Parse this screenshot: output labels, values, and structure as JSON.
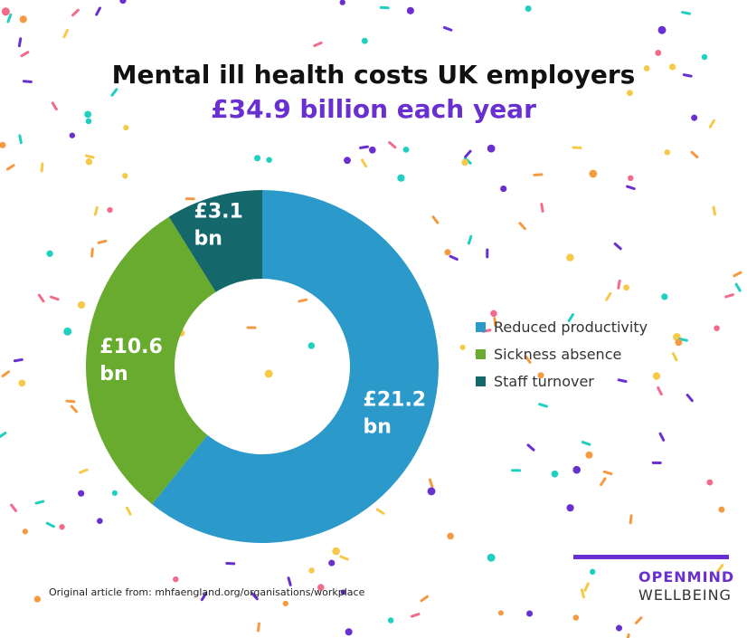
{
  "title_line1": "Mental ill health costs UK employers",
  "title_line2": "£34.9 billion each year",
  "accent_color": "#6a2fd0",
  "chart_data": {
    "type": "pie",
    "subtype": "donut",
    "title": "Mental ill health costs UK employers £34.9 billion each year",
    "total": 34.9,
    "unit": "£ bn",
    "series": [
      {
        "name": "Reduced productivity",
        "value": 21.2,
        "label_line1": "£21.2",
        "label_line2": "bn",
        "color": "#2b99c9"
      },
      {
        "name": "Sickness absence",
        "value": 10.6,
        "label_line1": "£10.6",
        "label_line2": "bn",
        "color": "#69ab2e"
      },
      {
        "name": "Staff turnover",
        "value": 3.1,
        "label_line1": "£3.1",
        "label_line2": "bn",
        "color": "#14686c"
      }
    ],
    "legend_position": "right"
  },
  "source_text": "Original article from: mhfaengland.org/organisations/workplace",
  "logo": {
    "line1": "OPENMIND",
    "line2": "WELLBEING"
  }
}
